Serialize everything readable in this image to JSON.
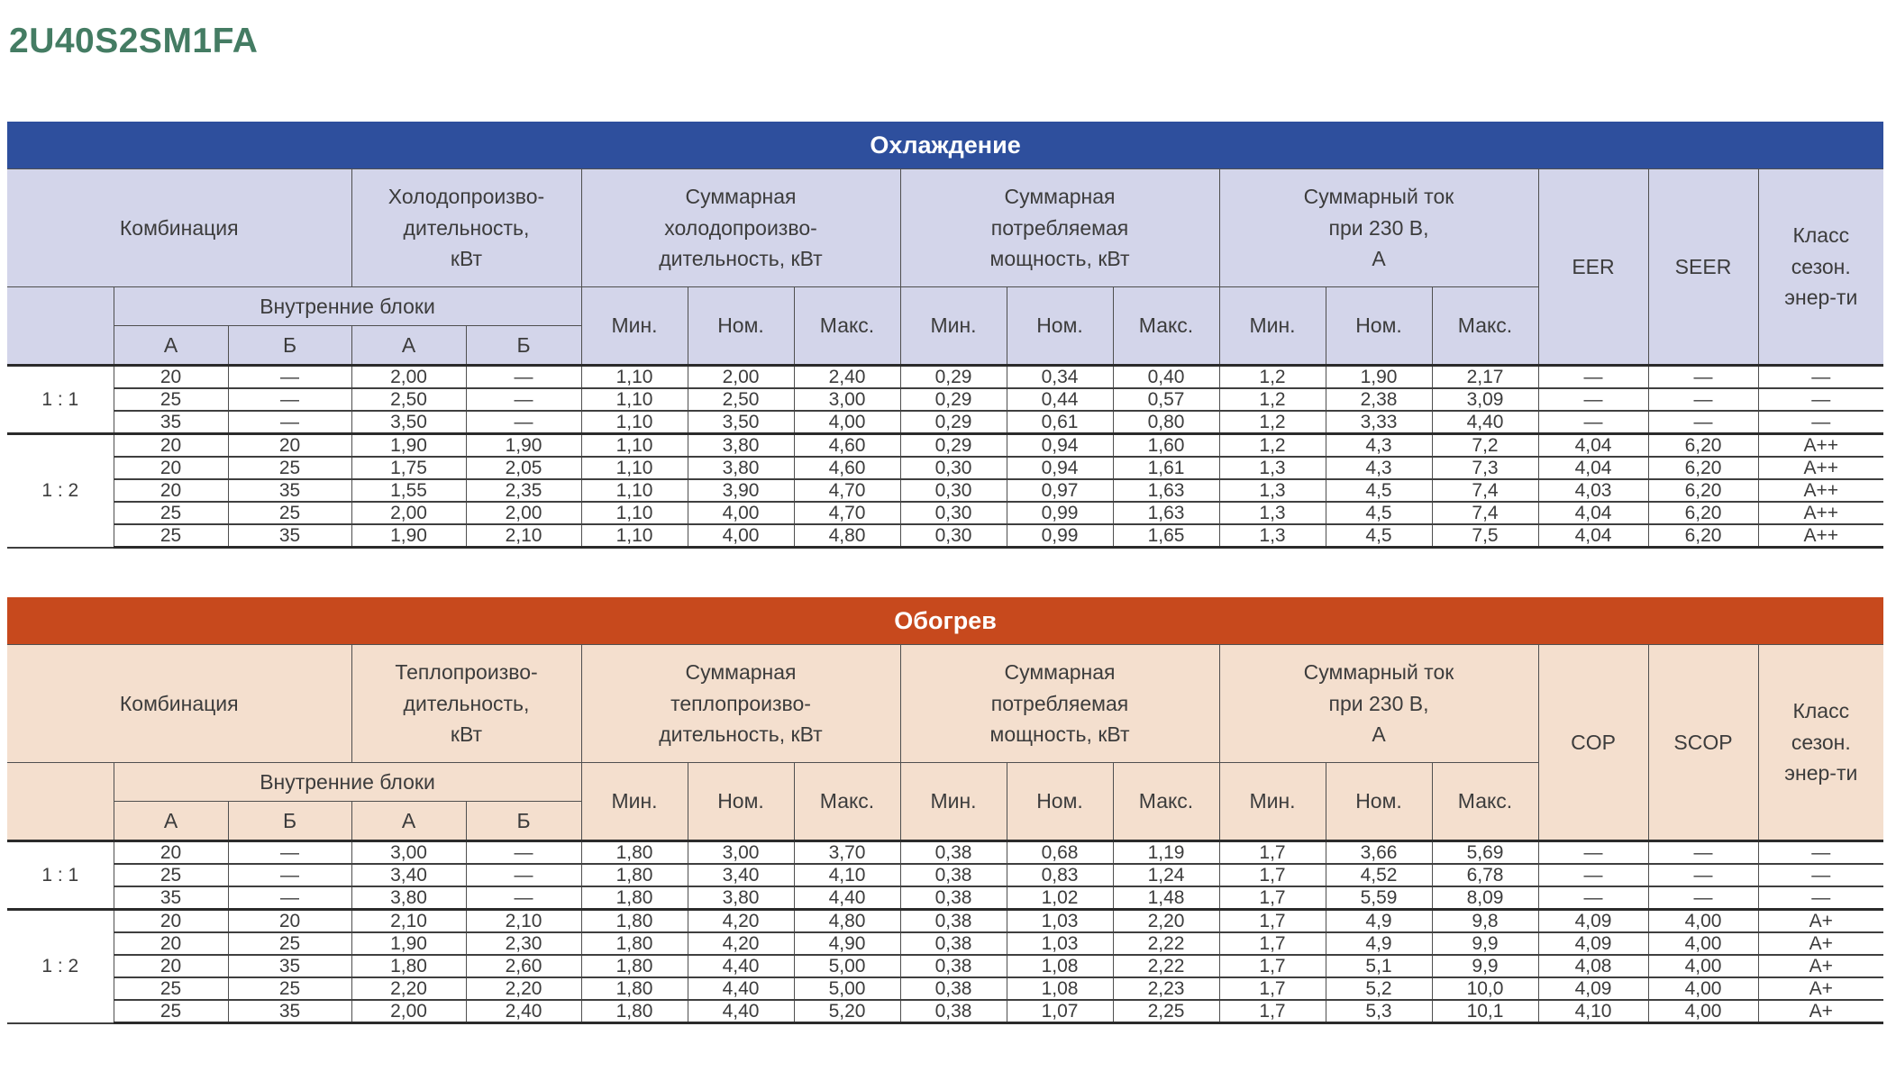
{
  "page": {
    "title": "2U40S2SM1FA"
  },
  "colors": {
    "title_green": "#447c63",
    "cooling_banner": "#2e4f9d",
    "cooling_header_bg": "#d3d5ea",
    "heating_banner": "#c7491d",
    "heating_header_bg": "#f4dfce",
    "grid_line": "#4f4f4f",
    "text": "#3c3c3c"
  },
  "tables": [
    {
      "id": "cooling",
      "banner": "Охлаждение",
      "headers": {
        "combination": "Комбинация",
        "indoor_units": "Внутренние блоки",
        "unit_a": "А",
        "unit_b": "Б",
        "capacity": "Холодопроизво-\nдительность,\nкВт",
        "total_capacity": "Суммарная\nхолодопроизво-\nдительность, кВт",
        "total_power": "Суммарная\nпотребляемая\nмощность, кВт",
        "total_current": "Суммарный ток\nпри 230 В,\nА",
        "min": "Мин.",
        "nom": "Ном.",
        "max": "Макс.",
        "eff": "EER",
        "seasonal_eff": "SEER",
        "energy_class": "Класс\nсезон.\nэнер-ти"
      },
      "groups": [
        {
          "ratio": "1 : 1",
          "rows": [
            [
              "20",
              "—",
              "2,00",
              "—",
              "1,10",
              "2,00",
              "2,40",
              "0,29",
              "0,34",
              "0,40",
              "1,2",
              "1,90",
              "2,17",
              "—",
              "—",
              "—"
            ],
            [
              "25",
              "—",
              "2,50",
              "—",
              "1,10",
              "2,50",
              "3,00",
              "0,29",
              "0,44",
              "0,57",
              "1,2",
              "2,38",
              "3,09",
              "—",
              "—",
              "—"
            ],
            [
              "35",
              "—",
              "3,50",
              "—",
              "1,10",
              "3,50",
              "4,00",
              "0,29",
              "0,61",
              "0,80",
              "1,2",
              "3,33",
              "4,40",
              "—",
              "—",
              "—"
            ]
          ]
        },
        {
          "ratio": "1 : 2",
          "rows": [
            [
              "20",
              "20",
              "1,90",
              "1,90",
              "1,10",
              "3,80",
              "4,60",
              "0,29",
              "0,94",
              "1,60",
              "1,2",
              "4,3",
              "7,2",
              "4,04",
              "6,20",
              "A++"
            ],
            [
              "20",
              "25",
              "1,75",
              "2,05",
              "1,10",
              "3,80",
              "4,60",
              "0,30",
              "0,94",
              "1,61",
              "1,3",
              "4,3",
              "7,3",
              "4,04",
              "6,20",
              "A++"
            ],
            [
              "20",
              "35",
              "1,55",
              "2,35",
              "1,10",
              "3,90",
              "4,70",
              "0,30",
              "0,97",
              "1,63",
              "1,3",
              "4,5",
              "7,4",
              "4,03",
              "6,20",
              "A++"
            ],
            [
              "25",
              "25",
              "2,00",
              "2,00",
              "1,10",
              "4,00",
              "4,70",
              "0,30",
              "0,99",
              "1,63",
              "1,3",
              "4,5",
              "7,4",
              "4,04",
              "6,20",
              "A++"
            ],
            [
              "25",
              "35",
              "1,90",
              "2,10",
              "1,10",
              "4,00",
              "4,80",
              "0,30",
              "0,99",
              "1,65",
              "1,3",
              "4,5",
              "7,5",
              "4,04",
              "6,20",
              "A++"
            ]
          ]
        }
      ]
    },
    {
      "id": "heating",
      "banner": "Обогрев",
      "headers": {
        "combination": "Комбинация",
        "indoor_units": "Внутренние блоки",
        "unit_a": "А",
        "unit_b": "Б",
        "capacity": "Теплопроизво-\nдительность,\nкВт",
        "total_capacity": "Суммарная\nтеплопроизво-\nдительность, кВт",
        "total_power": "Суммарная\nпотребляемая\nмощность, кВт",
        "total_current": "Суммарный ток\nпри 230 В,\nА",
        "min": "Мин.",
        "nom": "Ном.",
        "max": "Макс.",
        "eff": "COP",
        "seasonal_eff": "SCOP",
        "energy_class": "Класс\nсезон.\nэнер-ти"
      },
      "groups": [
        {
          "ratio": "1 : 1",
          "rows": [
            [
              "20",
              "—",
              "3,00",
              "—",
              "1,80",
              "3,00",
              "3,70",
              "0,38",
              "0,68",
              "1,19",
              "1,7",
              "3,66",
              "5,69",
              "—",
              "—",
              "—"
            ],
            [
              "25",
              "—",
              "3,40",
              "—",
              "1,80",
              "3,40",
              "4,10",
              "0,38",
              "0,83",
              "1,24",
              "1,7",
              "4,52",
              "6,78",
              "—",
              "—",
              "—"
            ],
            [
              "35",
              "—",
              "3,80",
              "—",
              "1,80",
              "3,80",
              "4,40",
              "0,38",
              "1,02",
              "1,48",
              "1,7",
              "5,59",
              "8,09",
              "—",
              "—",
              "—"
            ]
          ]
        },
        {
          "ratio": "1 : 2",
          "rows": [
            [
              "20",
              "20",
              "2,10",
              "2,10",
              "1,80",
              "4,20",
              "4,80",
              "0,38",
              "1,03",
              "2,20",
              "1,7",
              "4,9",
              "9,8",
              "4,09",
              "4,00",
              "A+"
            ],
            [
              "20",
              "25",
              "1,90",
              "2,30",
              "1,80",
              "4,20",
              "4,90",
              "0,38",
              "1,03",
              "2,22",
              "1,7",
              "4,9",
              "9,9",
              "4,09",
              "4,00",
              "A+"
            ],
            [
              "20",
              "35",
              "1,80",
              "2,60",
              "1,80",
              "4,40",
              "5,00",
              "0,38",
              "1,08",
              "2,22",
              "1,7",
              "5,1",
              "9,9",
              "4,08",
              "4,00",
              "A+"
            ],
            [
              "25",
              "25",
              "2,20",
              "2,20",
              "1,80",
              "4,40",
              "5,00",
              "0,38",
              "1,08",
              "2,23",
              "1,7",
              "5,2",
              "10,0",
              "4,09",
              "4,00",
              "A+"
            ],
            [
              "25",
              "35",
              "2,00",
              "2,40",
              "1,80",
              "4,40",
              "5,20",
              "0,38",
              "1,07",
              "2,25",
              "1,7",
              "5,3",
              "10,1",
              "4,10",
              "4,00",
              "A+"
            ]
          ]
        }
      ]
    }
  ]
}
